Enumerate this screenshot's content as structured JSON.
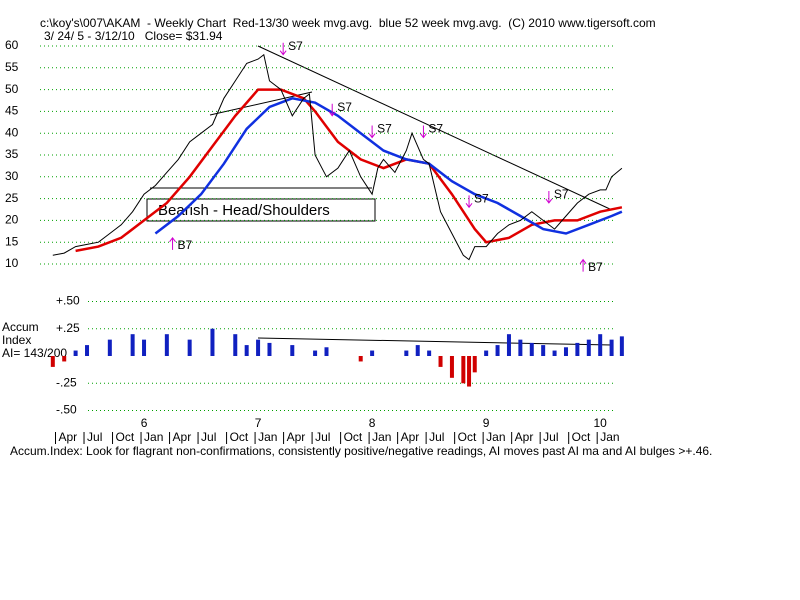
{
  "chart_data": {
    "type": "line",
    "title": "c:\\koy's\\007\\AKAM  - Weekly Chart  Red-13/30 week mvg.avg.  blue 52 week mvg.avg.  (C) 2010 www.tigersoft.com",
    "subtitle": "3/ 24/ 5 - 3/12/10   Close= $31.94",
    "xlim": [
      5.0,
      10.2
    ],
    "xticks": [
      6,
      7,
      8,
      9,
      10
    ],
    "month_ticks": [
      {
        "value": 5.25,
        "label": "Apr"
      },
      {
        "value": 5.5,
        "label": "Jul"
      },
      {
        "value": 5.75,
        "label": "Oct"
      },
      {
        "value": 6.0,
        "label": "Jan"
      },
      {
        "value": 6.25,
        "label": "Apr"
      },
      {
        "value": 6.5,
        "label": "Jul"
      },
      {
        "value": 6.75,
        "label": "Oct"
      },
      {
        "value": 7.0,
        "label": "Jan"
      },
      {
        "value": 7.25,
        "label": "Apr"
      },
      {
        "value": 7.5,
        "label": "Jul"
      },
      {
        "value": 7.75,
        "label": "Oct"
      },
      {
        "value": 8.0,
        "label": "Jan"
      },
      {
        "value": 8.25,
        "label": "Apr"
      },
      {
        "value": 8.5,
        "label": "Jul"
      },
      {
        "value": 8.75,
        "label": "Oct"
      },
      {
        "value": 9.0,
        "label": "Jan"
      },
      {
        "value": 9.25,
        "label": "Apr"
      },
      {
        "value": 9.5,
        "label": "Jul"
      },
      {
        "value": 9.75,
        "label": "Oct"
      },
      {
        "value": 10.0,
        "label": "Jan"
      }
    ],
    "ylim": [
      10,
      60
    ],
    "yticks": [
      10,
      15,
      20,
      25,
      30,
      35,
      40,
      45,
      50,
      55,
      60
    ],
    "grid": true,
    "price": {
      "color": "#000000",
      "x": [
        5.2,
        5.3,
        5.4,
        5.5,
        5.6,
        5.7,
        5.8,
        5.9,
        6.0,
        6.1,
        6.2,
        6.3,
        6.4,
        6.5,
        6.6,
        6.7,
        6.8,
        6.9,
        7.0,
        7.05,
        7.1,
        7.2,
        7.3,
        7.4,
        7.45,
        7.5,
        7.6,
        7.7,
        7.8,
        7.9,
        8.0,
        8.05,
        8.1,
        8.2,
        8.3,
        8.35,
        8.4,
        8.45,
        8.5,
        8.6,
        8.7,
        8.8,
        8.85,
        8.9,
        9.0,
        9.1,
        9.2,
        9.3,
        9.4,
        9.5,
        9.6,
        9.7,
        9.8,
        9.9,
        10.0,
        10.05,
        10.1,
        10.19
      ],
      "values": [
        12,
        12.5,
        14,
        14.5,
        15,
        17,
        19,
        22,
        26,
        28,
        31,
        34,
        38,
        40,
        42,
        48,
        52,
        56,
        57,
        58,
        52,
        50,
        44,
        48,
        49,
        35,
        30,
        32,
        36,
        30,
        26,
        32,
        34,
        31,
        36,
        40,
        37,
        34,
        33,
        22,
        17,
        12,
        11,
        14,
        14,
        17,
        19,
        20,
        22,
        20,
        18,
        21,
        24,
        26,
        27,
        27,
        30,
        31.94
      ]
    },
    "series": [
      {
        "name": "Red-13/30 week mvg.avg.",
        "color": "#e00000",
        "x": [
          5.4,
          5.6,
          5.8,
          6.0,
          6.2,
          6.4,
          6.6,
          6.8,
          7.0,
          7.2,
          7.4,
          7.5,
          7.7,
          7.9,
          8.1,
          8.3,
          8.5,
          8.7,
          8.9,
          9.0,
          9.2,
          9.4,
          9.6,
          9.8,
          10.0,
          10.19
        ],
        "values": [
          13,
          14,
          16,
          20,
          24,
          30,
          37,
          44,
          50,
          50,
          48,
          45,
          38,
          34,
          32,
          34,
          33,
          26,
          18,
          15,
          16,
          19,
          20,
          20,
          22,
          23
        ]
      },
      {
        "name": "blue 52 week mvg.avg.",
        "color": "#1030e0",
        "x": [
          6.1,
          6.3,
          6.5,
          6.7,
          6.9,
          7.1,
          7.3,
          7.5,
          7.7,
          7.9,
          8.1,
          8.3,
          8.5,
          8.7,
          8.9,
          9.1,
          9.3,
          9.5,
          9.7,
          9.9,
          10.1,
          10.19
        ],
        "values": [
          17,
          21,
          26,
          33,
          41,
          46,
          48,
          47,
          44,
          40,
          36,
          34,
          33,
          29,
          26,
          24,
          21,
          18,
          17,
          19,
          21,
          22
        ]
      }
    ],
    "signals": [
      {
        "label": "S7",
        "x": 7.22,
        "y": 58
      },
      {
        "label": "S7",
        "x": 7.65,
        "y": 44
      },
      {
        "label": "S7",
        "x": 8.0,
        "y": 39
      },
      {
        "label": "S7",
        "x": 8.45,
        "y": 39
      },
      {
        "label": "S7",
        "x": 8.85,
        "y": 23
      },
      {
        "label": "S7",
        "x": 9.55,
        "y": 24
      },
      {
        "label": "B7",
        "x": 6.25,
        "y": 16
      },
      {
        "label": "B7",
        "x": 9.85,
        "y": 11
      }
    ],
    "annotation": "Bearish - Head/Shoulders",
    "accum": {
      "label_lines": [
        "Accum",
        "Index",
        "AI= 143/200"
      ],
      "ylim": [
        -0.55,
        0.55
      ],
      "yticks": [
        {
          "value": 0.5,
          "label": "+.50"
        },
        {
          "value": 0.25,
          "label": "+.25"
        },
        {
          "value": -0.25,
          "label": "-.25"
        },
        {
          "value": -0.5,
          "label": "-.50"
        }
      ],
      "pos_color": "#1020c0",
      "neg_color": "#d00000",
      "x": [
        5.2,
        5.3,
        5.4,
        5.5,
        5.7,
        5.9,
        6.0,
        6.2,
        6.4,
        6.6,
        6.8,
        6.9,
        7.0,
        7.1,
        7.3,
        7.4,
        7.5,
        7.6,
        7.8,
        7.9,
        8.0,
        8.2,
        8.3,
        8.4,
        8.5,
        8.6,
        8.7,
        8.8,
        8.85,
        8.9,
        9.0,
        9.1,
        9.2,
        9.3,
        9.4,
        9.5,
        9.6,
        9.7,
        9.8,
        9.9,
        10.0,
        10.1,
        10.19
      ],
      "values": [
        -0.1,
        -0.05,
        0.05,
        0.1,
        0.15,
        0.2,
        0.15,
        0.2,
        0.15,
        0.25,
        0.2,
        0.1,
        0.15,
        0.12,
        0.1,
        0.0,
        0.05,
        0.08,
        0.0,
        -0.05,
        0.05,
        0.0,
        0.05,
        0.1,
        0.05,
        -0.1,
        -0.2,
        -0.25,
        -0.28,
        -0.15,
        0.05,
        0.1,
        0.2,
        0.15,
        0.12,
        0.1,
        0.05,
        0.08,
        0.12,
        0.15,
        0.2,
        0.15,
        0.18
      ]
    },
    "footnote": "Accum.Index: Look for flagrant non-confirmations, consistently positive/negative readings, AI moves past AI ma and AI bulges >+.46."
  }
}
